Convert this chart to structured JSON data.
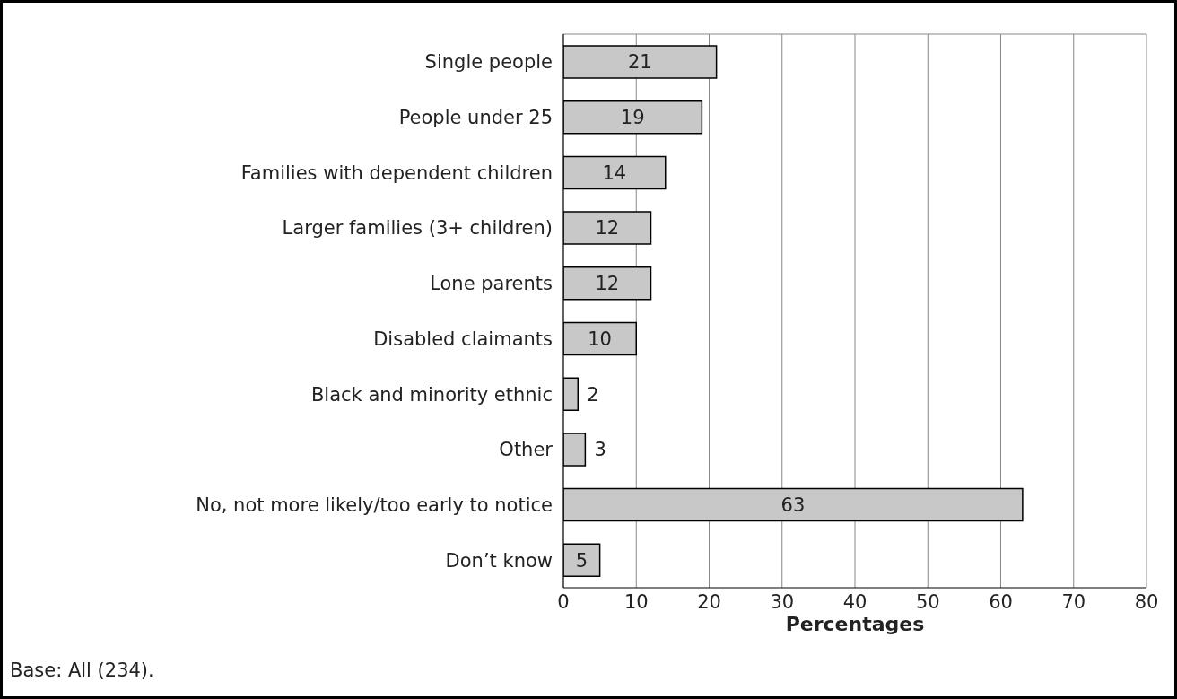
{
  "chart_data": {
    "type": "bar",
    "orientation": "horizontal",
    "categories": [
      "Single people",
      "People under 25",
      "Families with dependent children",
      "Larger families (3+ children)",
      "Lone parents",
      "Disabled claimants",
      "Black and minority ethnic",
      "Other",
      "No, not more likely/too early to notice",
      "Don’t know"
    ],
    "values": [
      21,
      19,
      14,
      12,
      12,
      10,
      2,
      3,
      63,
      5
    ],
    "color": "#c8c8c8",
    "xlim": [
      0,
      80
    ],
    "xticks": [
      0,
      10,
      20,
      30,
      40,
      50,
      60,
      70,
      80
    ],
    "xlabel": "Percentages",
    "grid": "x",
    "data_labels": true,
    "annotations": [
      "Base: All (234)."
    ]
  }
}
